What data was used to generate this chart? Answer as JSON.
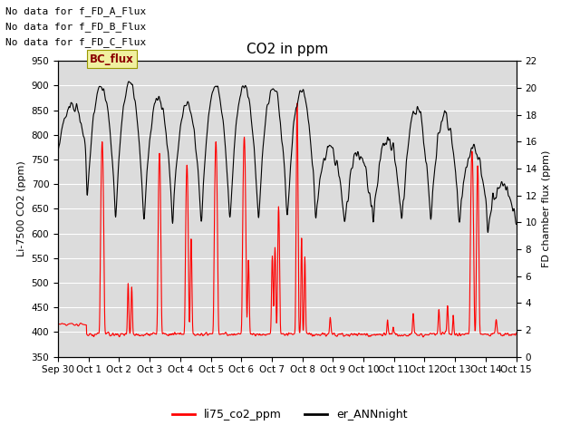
{
  "title": "CO2 in ppm",
  "ylabel_left": "Li-7500 CO2 (ppm)",
  "ylabel_right": "FD chamber flux (ppm)",
  "ylim_left": [
    350,
    950
  ],
  "ylim_right": [
    0,
    22
  ],
  "yticks_left": [
    350,
    400,
    450,
    500,
    550,
    600,
    650,
    700,
    750,
    800,
    850,
    900,
    950
  ],
  "yticks_right": [
    0,
    2,
    4,
    6,
    8,
    10,
    12,
    14,
    16,
    18,
    20,
    22
  ],
  "xtick_labels": [
    "Sep 30",
    "Oct 1",
    "Oct 2",
    "Oct 3",
    "Oct 4",
    "Oct 5",
    "Oct 6",
    "Oct 7",
    "Oct 8",
    "Oct 9",
    "Oct 10",
    "Oct 11",
    "Oct 12",
    "Oct 13",
    "Oct 14",
    "Oct 15"
  ],
  "annotations": [
    "No data for f_FD_A_Flux",
    "No data for f_FD_B_Flux",
    "No data for f_FD_C_Flux"
  ],
  "bc_flux_label": "BC_flux",
  "legend_labels": [
    "li75_co2_ppm",
    "er_ANNnight"
  ],
  "line_colors": [
    "red",
    "black"
  ],
  "plot_bg_color": "#dcdcdc",
  "title_fontsize": 11,
  "label_fontsize": 8,
  "tick_fontsize": 7.5,
  "annot_fontsize": 8
}
